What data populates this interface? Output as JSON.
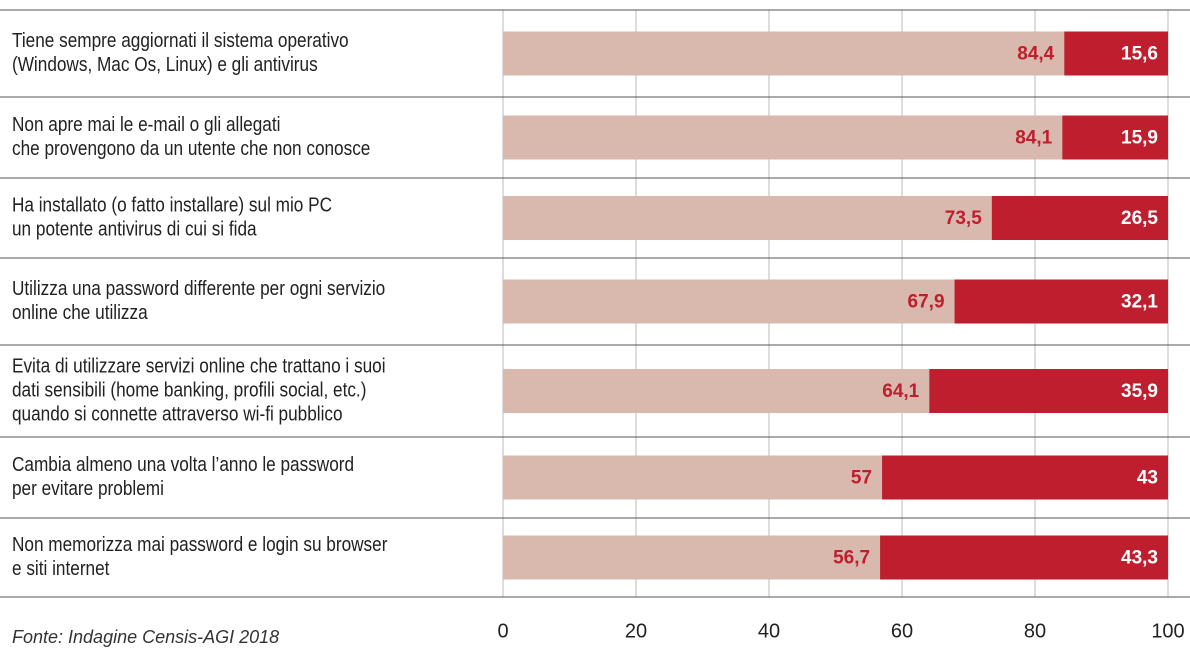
{
  "chart_data": {
    "type": "bar",
    "orientation": "horizontal",
    "stacked": true,
    "categories": [
      [
        "Tiene sempre aggiornati il sistema operativo",
        "(Windows, Mac Os, Linux) e gli antivirus"
      ],
      [
        "Non apre mai le e-mail o gli allegati",
        "che provengono da un utente che non conosce"
      ],
      [
        "Ha installato (o fatto installare) sul mio PC",
        "un potente antivirus di cui si fida"
      ],
      [
        "Utilizza una password differente per ogni servizio",
        "online che utilizza"
      ],
      [
        "Evita di utilizzare servizi online che trattano i suoi",
        "dati sensibili (home banking, profili social, etc.)",
        "quando si connette attraverso wi-fi  pubblico"
      ],
      [
        "Cambia almeno una volta l’anno le password",
        "per evitare problemi"
      ],
      [
        "Non memorizza mai password e login su browser",
        "e siti internet"
      ]
    ],
    "series": [
      {
        "color": "#d9b9ae",
        "values": [
          84.4,
          84.1,
          73.5,
          67.9,
          64.1,
          57,
          56.7
        ],
        "value_labels": [
          "84,4",
          "84,1",
          "73,5",
          "67,9",
          "64,1",
          "57",
          "56,7"
        ]
      },
      {
        "color": "#be1e2d",
        "values": [
          15.6,
          15.9,
          26.5,
          32.1,
          35.9,
          43,
          43.3
        ],
        "value_labels": [
          "15,6",
          "15,9",
          "26,5",
          "32,1",
          "35,9",
          "43",
          "43,3"
        ]
      }
    ],
    "xlim": [
      0,
      100
    ],
    "xticks": [
      0,
      20,
      40,
      60,
      80,
      100
    ],
    "grid": true,
    "source": "Fonte: Indagine Censis-AGI 2018"
  }
}
